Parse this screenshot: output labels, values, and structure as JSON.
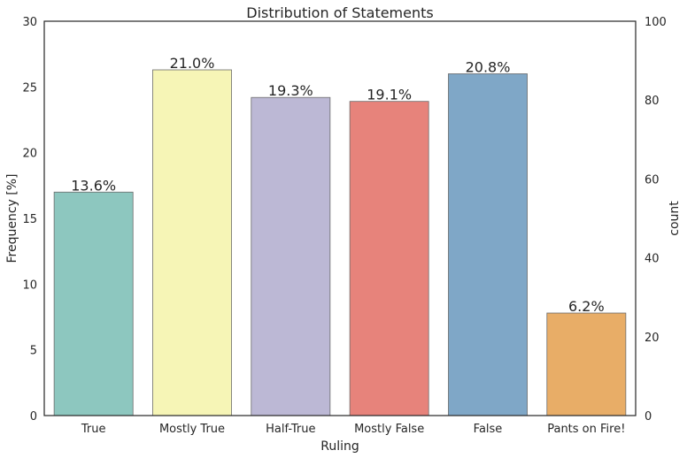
{
  "chart_data": {
    "type": "bar",
    "title": "Distribution of Statements",
    "xlabel": "Ruling",
    "ylabel": "Frequency [%]",
    "ylabel_right": "count",
    "ylim": [
      0,
      30
    ],
    "ylim_right": [
      0,
      100
    ],
    "yticks": [
      "0",
      "5",
      "10",
      "15",
      "20",
      "25",
      "30"
    ],
    "yticks_right": [
      "0",
      "20",
      "40",
      "60",
      "80",
      "100"
    ],
    "grid": false,
    "categories": [
      "True",
      "Mostly True",
      "Half-True",
      "Mostly False",
      "False",
      "Pants on Fire!"
    ],
    "values": [
      17.0,
      26.3,
      24.2,
      23.9,
      26.0,
      7.8
    ],
    "labels": [
      "13.6%",
      "21.0%",
      "19.3%",
      "19.1%",
      "20.8%",
      "6.2%"
    ],
    "colors": [
      "#8dc7bf",
      "#f6f5b6",
      "#bcb8d5",
      "#e7837b",
      "#7fa7c7",
      "#e8ad67"
    ]
  }
}
